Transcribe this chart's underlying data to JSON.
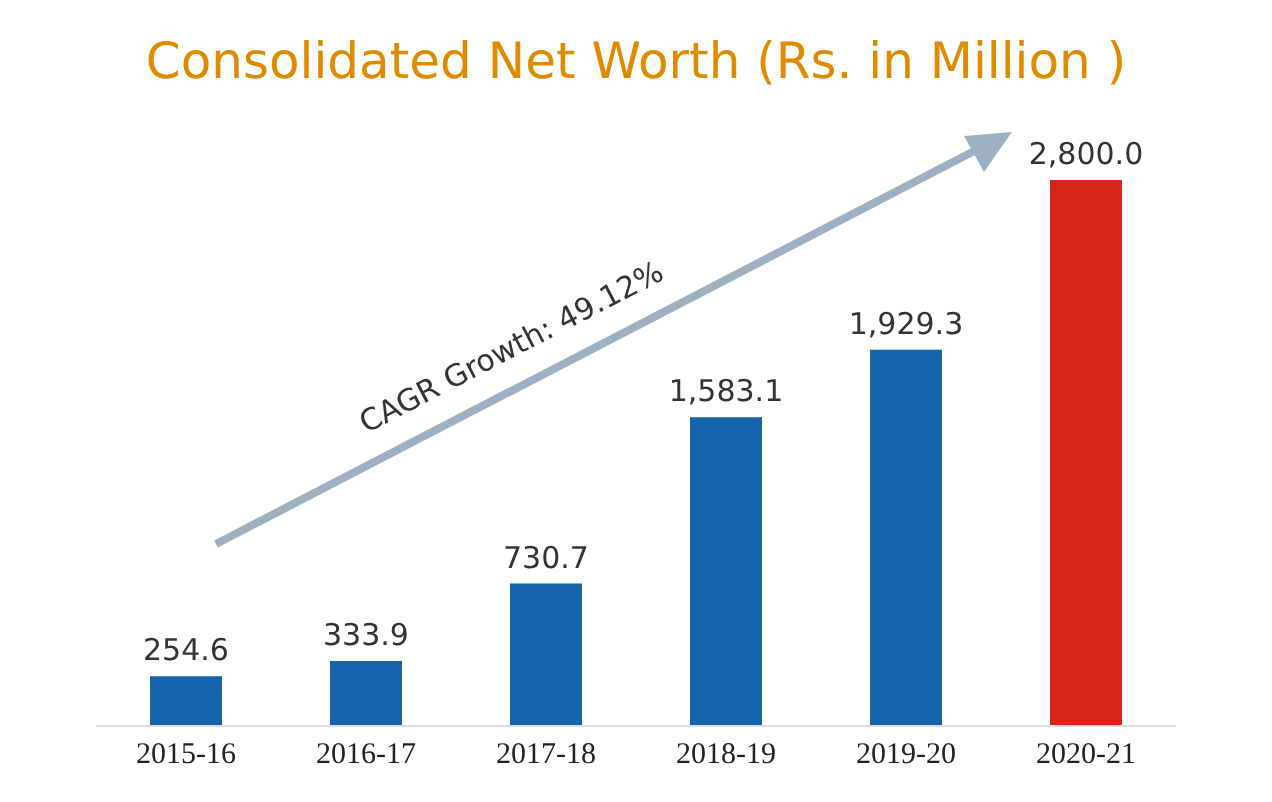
{
  "chart_data": {
    "type": "bar",
    "title": "Consolidated Net Worth (Rs. in Million )",
    "categories": [
      "2015-16",
      "2016-17",
      "2017-18",
      "2018-19",
      "2019-20",
      "2020-21"
    ],
    "values": [
      254.6,
      333.9,
      730.7,
      1583.1,
      1929.3,
      2800.0
    ],
    "colors": [
      "#1565ad",
      "#1565ad",
      "#1565ad",
      "#1565ad",
      "#1565ad",
      "#d9261c"
    ],
    "value_labels": [
      "254.6",
      "333.9",
      "730.7",
      "1,583.1",
      "1,929.3",
      "2,800.0"
    ],
    "annotations": [
      "CAGR Growth: 49.12%"
    ],
    "grid": false,
    "legend": false
  }
}
